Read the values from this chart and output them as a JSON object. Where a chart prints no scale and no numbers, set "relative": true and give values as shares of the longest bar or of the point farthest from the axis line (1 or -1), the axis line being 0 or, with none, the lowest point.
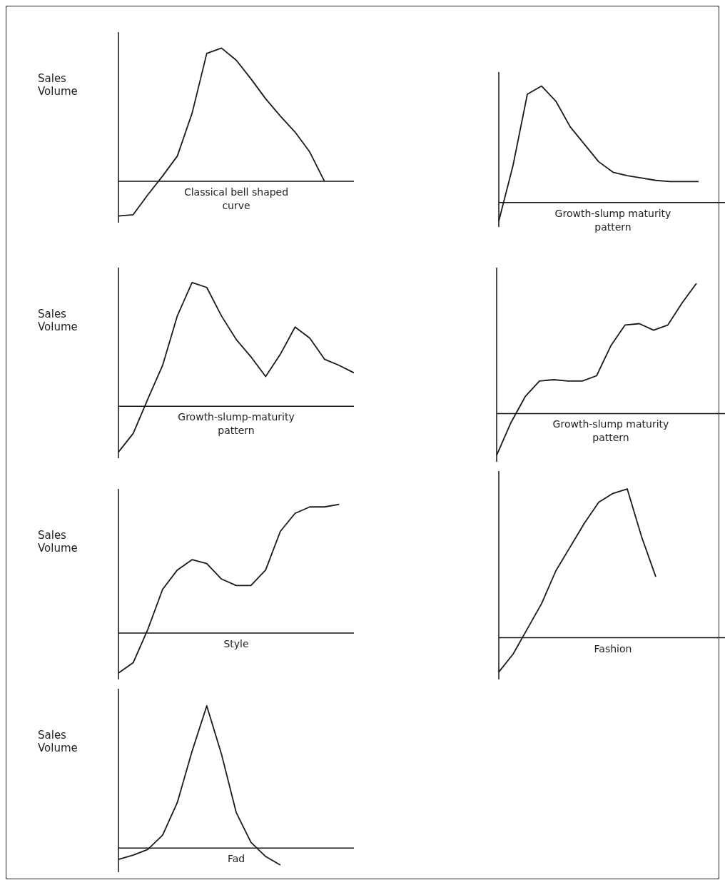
{
  "chart_data": [
    {
      "type": "line",
      "ylabel": "Sales Volume",
      "xlabel": "Classical bell shaped curve",
      "relative": true,
      "color": "#1a1a1a",
      "categories": [
        null,
        null,
        null,
        null,
        null,
        null,
        null,
        null,
        null,
        null,
        null,
        null,
        null,
        null,
        null,
        null,
        null
      ],
      "values": [
        -0.26,
        -0.25,
        -0.1,
        0.04,
        0.19,
        0.51,
        0.96,
        1,
        0.91,
        0.77,
        0.62,
        0.49,
        0.37,
        0.22,
        0.0,
        null,
        null
      ]
    },
    {
      "type": "line",
      "xlabel": "Growth-slump maturity pattern",
      "relative": true,
      "color": "#1a1a1a",
      "categories": [
        null,
        null,
        null,
        null,
        null,
        null,
        null,
        null,
        null,
        null,
        null,
        null,
        null,
        null,
        null,
        null,
        null
      ],
      "values": [
        -0.16,
        0.32,
        0.93,
        1,
        0.87,
        0.65,
        0.5,
        0.35,
        0.26,
        0.23,
        0.21,
        0.19,
        0.18,
        0.18,
        0.18,
        null,
        null
      ]
    },
    {
      "type": "line",
      "ylabel": "Sales Volume",
      "xlabel": "Growth-slump-maturity pattern",
      "relative": true,
      "color": "#1a1a1a",
      "categories": [
        null,
        null,
        null,
        null,
        null,
        null,
        null,
        null,
        null,
        null,
        null,
        null,
        null,
        null,
        null,
        null,
        null
      ],
      "values": [
        -0.37,
        -0.22,
        0.06,
        0.33,
        0.73,
        1,
        0.96,
        0.73,
        0.54,
        0.4,
        0.24,
        0.42,
        0.64,
        0.55,
        0.38,
        0.33,
        0.27
      ]
    },
    {
      "type": "line",
      "xlabel": "Growth-slump maturity pattern",
      "relative": true,
      "color": "#1a1a1a",
      "categories": [
        null,
        null,
        null,
        null,
        null,
        null,
        null,
        null,
        null,
        null,
        null,
        null,
        null,
        null,
        null,
        null,
        null
      ],
      "values": [
        -0.32,
        -0.07,
        0.13,
        0.25,
        0.26,
        0.25,
        0.25,
        0.29,
        0.52,
        0.68,
        0.69,
        0.64,
        0.68,
        0.85,
        1,
        null,
        null
      ]
    },
    {
      "type": "line",
      "ylabel": "Sales Volume",
      "xlabel": "Style",
      "relative": true,
      "color": "#1a1a1a",
      "categories": [
        null,
        null,
        null,
        null,
        null,
        null,
        null,
        null,
        null,
        null,
        null,
        null,
        null,
        null,
        null,
        null,
        null
      ],
      "values": [
        -0.31,
        -0.23,
        0.03,
        0.34,
        0.49,
        0.57,
        0.54,
        0.42,
        0.37,
        0.37,
        0.49,
        0.79,
        0.93,
        0.98,
        0.98,
        1,
        null
      ]
    },
    {
      "type": "line",
      "xlabel": "Fashion",
      "relative": true,
      "color": "#1a1a1a",
      "categories": [
        null,
        null,
        null,
        null,
        null,
        null,
        null,
        null,
        null,
        null,
        null,
        null,
        null,
        null,
        null,
        null,
        null
      ],
      "values": [
        -0.23,
        -0.11,
        0.06,
        0.23,
        0.45,
        0.61,
        0.77,
        0.91,
        0.97,
        1,
        0.68,
        0.41,
        null,
        null,
        null,
        null,
        null
      ]
    },
    {
      "type": "line",
      "ylabel": "Sales Volume",
      "xlabel": "Fad",
      "relative": true,
      "color": "#1a1a1a",
      "categories": [
        null,
        null,
        null,
        null,
        null,
        null,
        null,
        null,
        null,
        null,
        null,
        null,
        null,
        null,
        null,
        null,
        null
      ],
      "values": [
        -0.08,
        -0.05,
        -0.01,
        0.09,
        0.32,
        0.68,
        1,
        0.66,
        0.25,
        0.04,
        -0.06,
        -0.12,
        null,
        null,
        null,
        null,
        null
      ]
    }
  ]
}
